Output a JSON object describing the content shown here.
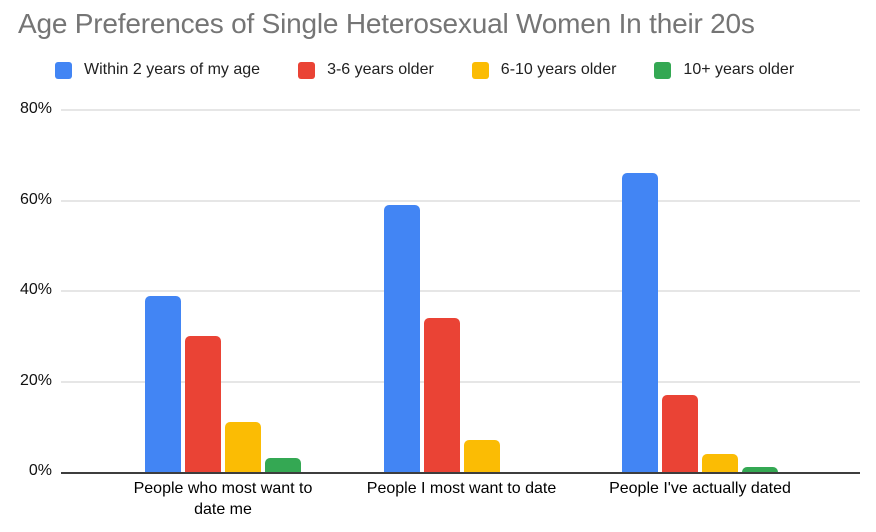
{
  "title": "Age Preferences of Single Heterosexual Women In their 20s",
  "title_color": "#757575",
  "legend": [
    {
      "label": "Within 2 years of my age",
      "color": "#4285F4"
    },
    {
      "label": "3-6 years older",
      "color": "#EA4335"
    },
    {
      "label": "6-10 years older",
      "color": "#FBBC04"
    },
    {
      "label": "10+ years older",
      "color": "#34A853"
    }
  ],
  "chart_data": {
    "type": "bar",
    "title": "Age Preferences of Single Heterosexual Women In their 20s",
    "categories": [
      "People who most want to date me",
      "People I most want to date",
      "People I've actually dated"
    ],
    "series": [
      {
        "name": "Within 2 years of my age",
        "color": "#4285F4",
        "values": [
          39,
          59,
          66
        ]
      },
      {
        "name": "3-6 years older",
        "color": "#EA4335",
        "values": [
          30,
          34,
          17
        ]
      },
      {
        "name": "6-10 years older",
        "color": "#FBBC04",
        "values": [
          11,
          7,
          4
        ]
      },
      {
        "name": "10+ years older",
        "color": "#34A853",
        "values": [
          3,
          0,
          1
        ]
      }
    ],
    "xlabel": "",
    "ylabel": "",
    "ylim": [
      0,
      80
    ],
    "yticks": [
      "0%",
      "20%",
      "40%",
      "60%",
      "80%"
    ],
    "ytick_values": [
      0,
      20,
      40,
      60,
      80
    ],
    "grid": true,
    "legend_position": "top",
    "axis_color": "#3d3d3d",
    "gridline_color": "#e6e6e6"
  }
}
